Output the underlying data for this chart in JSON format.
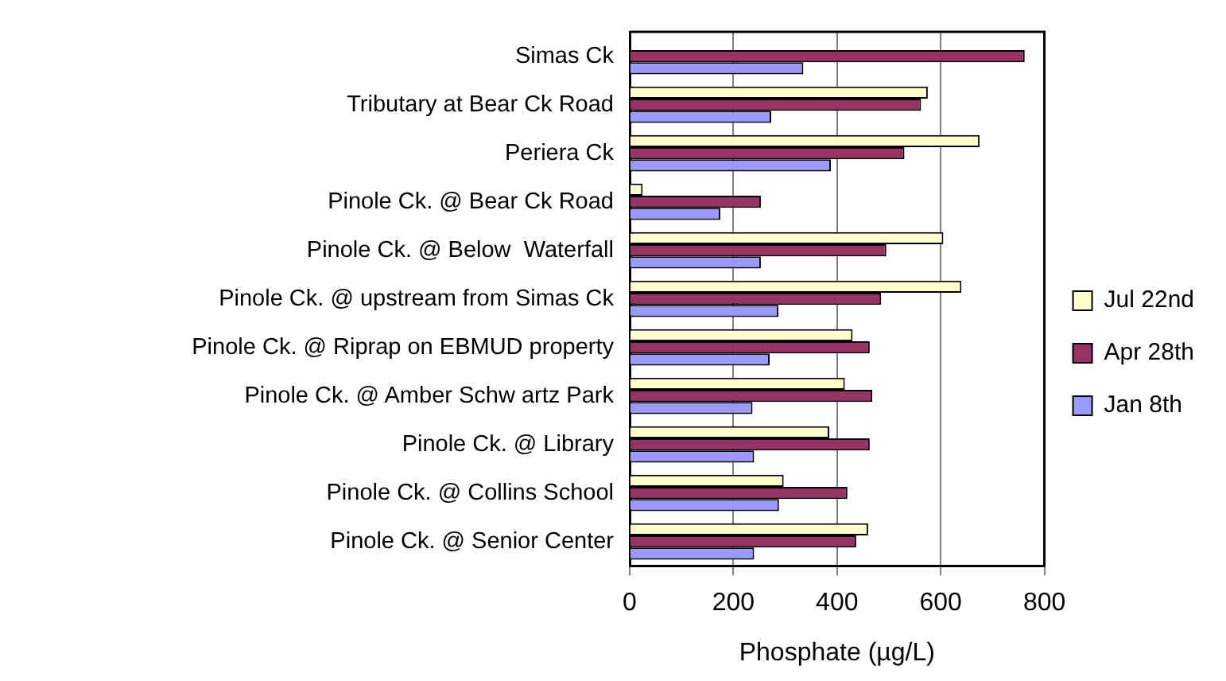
{
  "chart_data": {
    "type": "bar",
    "orientation": "horizontal",
    "xlabel": "Phosphate (µg/L)",
    "categories": [
      "Simas Ck",
      "Tributary at Bear Ck Road",
      "Periera Ck",
      "Pinole Ck. @ Bear Ck Road",
      "Pinole Ck. @ Below  Waterfall",
      "Pinole Ck. @ upstream from Simas Ck",
      "Pinole Ck. @ Riprap on EBMUD property",
      "Pinole Ck. @ Amber Schw artz Park",
      "Pinole Ck. @ Library",
      "Pinole Ck. @ Collins School",
      "Pinole Ck. @ Senior Center"
    ],
    "series": [
      {
        "name": "Jul 22nd",
        "color": "#ffffcc",
        "values": [
          null,
          575,
          675,
          25,
          605,
          640,
          430,
          415,
          385,
          297,
          460
        ]
      },
      {
        "name": "Apr 28th",
        "color": "#993366",
        "values": [
          762,
          562,
          530,
          253,
          495,
          485,
          463,
          468,
          463,
          420,
          437
        ]
      },
      {
        "name": "Jan 8th",
        "color": "#9999ff",
        "values": [
          335,
          273,
          388,
          175,
          253,
          287,
          270,
          237,
          240,
          288,
          240
        ]
      }
    ],
    "xlim": [
      0,
      800
    ],
    "xticks": [
      0,
      200,
      400,
      600,
      800
    ],
    "grid": "x",
    "legend": "right"
  }
}
